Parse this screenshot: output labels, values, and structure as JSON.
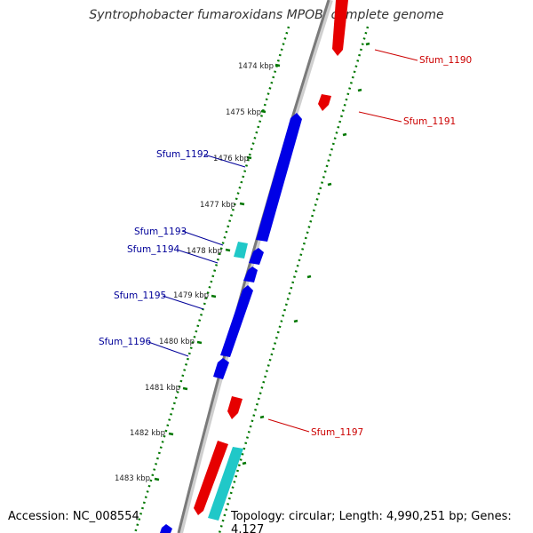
{
  "title": "Syntrophobacter fumaroxidans MPOB, complete genome",
  "accession": "Accession: NC_008554",
  "topology": "Topology: circular; Length: 4,990,251 bp; Genes: 4,127",
  "colors": {
    "forward_gene": "#e60000",
    "reverse_gene": "#0000e6",
    "rna_gene": "#20c8c8",
    "backbone": "#888888",
    "gc_ticks": "#007700",
    "forward_label": "#cc0000",
    "reverse_label": "#000099"
  },
  "tick_labels": [
    "1474 kbp",
    "1475 kbp",
    "1476 kbp",
    "1477 kbp",
    "1478 kbp",
    "1479 kbp",
    "1480 kbp",
    "1481 kbp",
    "1482 kbp",
    "1483 kbp"
  ],
  "gene_labels": {
    "forward": [
      "Sfum_1190",
      "Sfum_1191",
      "Sfum_1197"
    ],
    "reverse": [
      "Sfum_1192",
      "Sfum_1193",
      "Sfum_1194",
      "Sfum_1195",
      "Sfum_1196"
    ]
  }
}
